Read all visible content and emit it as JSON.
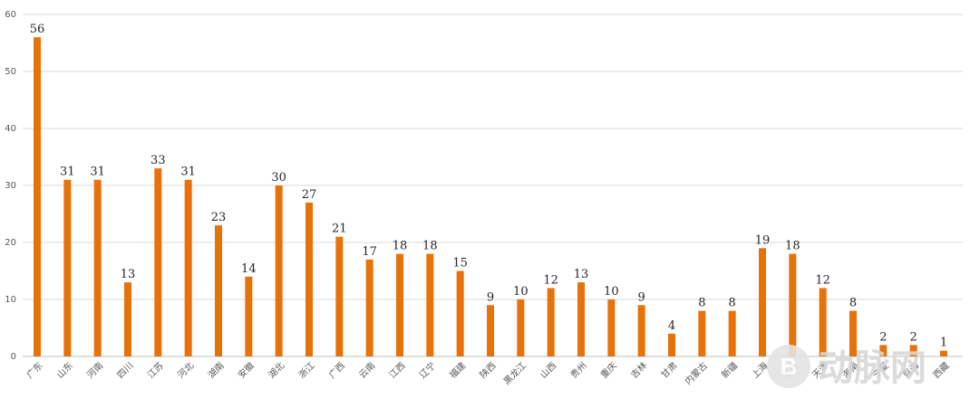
{
  "chart_data": {
    "type": "bar",
    "title": "",
    "xlabel": "",
    "ylabel": "",
    "ylim": [
      0,
      60
    ],
    "yticks": [
      0,
      10,
      20,
      30,
      40,
      50,
      60
    ],
    "grid": true,
    "bar_color": "#e8720a",
    "categories": [
      "广东",
      "山东",
      "河南",
      "四川",
      "江苏",
      "河北",
      "湖南",
      "安徽",
      "湖北",
      "浙江",
      "广西",
      "云南",
      "江西",
      "辽宁",
      "福建",
      "陕西",
      "黑龙江",
      "山西",
      "贵州",
      "重庆",
      "吉林",
      "甘肃",
      "内蒙古",
      "新疆",
      "上海",
      "北京",
      "天津",
      "海南",
      "宁夏",
      "青海",
      "西藏"
    ],
    "values": [
      56,
      31,
      31,
      13,
      33,
      31,
      23,
      14,
      30,
      27,
      21,
      17,
      18,
      18,
      15,
      9,
      10,
      12,
      13,
      10,
      9,
      4,
      8,
      8,
      19,
      18,
      12,
      8,
      2,
      2,
      1
    ]
  },
  "watermark": {
    "logo_glyph": "B",
    "text": "动脉网"
  }
}
